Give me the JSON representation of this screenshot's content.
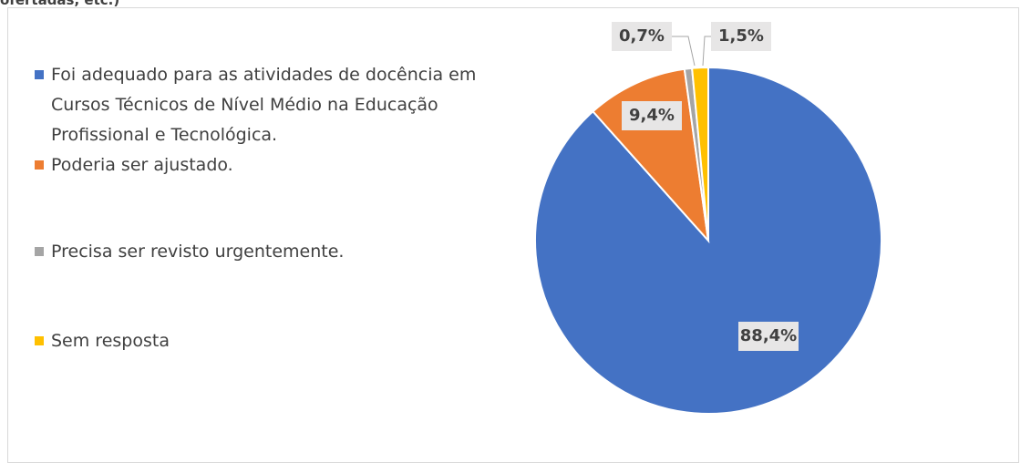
{
  "chart_data": {
    "type": "pie",
    "title": "ofertadas, etc.)",
    "categories": [
      "Foi adequado para as atividades de docência em Cursos Técnicos de Nível Médio na Educação Profissional e Tecnológica.",
      "Poderia ser ajustado.",
      "Precisa ser revisto urgentemente.",
      "Sem resposta"
    ],
    "values": [
      88.4,
      9.4,
      0.7,
      1.5
    ],
    "value_labels": [
      "88,4%",
      "9,4%",
      "0,7%",
      "1,5%"
    ],
    "colors": [
      "#4472c4",
      "#ed7d31",
      "#a5a5a5",
      "#ffc000"
    ]
  }
}
